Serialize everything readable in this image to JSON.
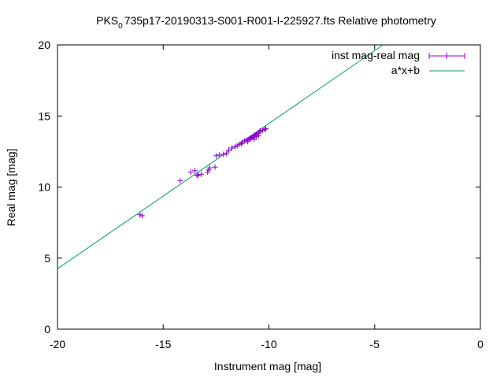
{
  "chart_data": {
    "type": "scatter",
    "title_prefix": "PKS",
    "title_subscript": "0",
    "title_suffix": "735p17-20190313-S001-R001-I-225927.fts Relative photometry",
    "xlabel": "Instrument mag [mag]",
    "ylabel": "Real mag [mag]",
    "xlim": [
      -20,
      0
    ],
    "ylim": [
      0,
      20
    ],
    "xticks": [
      -20,
      -15,
      -10,
      -5,
      0
    ],
    "yticks": [
      0,
      5,
      10,
      15,
      20
    ],
    "xtick_labels": [
      "-20",
      "-15",
      "-10",
      "-5",
      "0"
    ],
    "ytick_labels": [
      "0",
      "5",
      "10",
      "15",
      "20"
    ],
    "grid": false,
    "legend_position": "top-right",
    "colors": {
      "points": "#9400d3",
      "fit": "#009e73"
    },
    "series": [
      {
        "name": "inst mag-real mag",
        "style": "points-errorbars",
        "points": [
          [
            -16.1,
            8.05
          ],
          [
            -16.0,
            7.98
          ],
          [
            -14.2,
            10.45
          ],
          [
            -13.7,
            11.05
          ],
          [
            -13.5,
            11.15
          ],
          [
            -13.4,
            10.8
          ],
          [
            -13.35,
            10.85
          ],
          [
            -13.2,
            10.9
          ],
          [
            -12.9,
            11.05
          ],
          [
            -12.85,
            11.2
          ],
          [
            -12.8,
            11.35
          ],
          [
            -12.55,
            11.4
          ],
          [
            -12.5,
            12.2
          ],
          [
            -12.35,
            12.25
          ],
          [
            -12.15,
            12.3
          ],
          [
            -12.0,
            12.35
          ],
          [
            -11.9,
            12.6
          ],
          [
            -11.75,
            12.75
          ],
          [
            -11.6,
            12.85
          ],
          [
            -11.5,
            12.9
          ],
          [
            -11.4,
            13.0
          ],
          [
            -11.3,
            13.05
          ],
          [
            -11.25,
            13.15
          ],
          [
            -11.15,
            13.25
          ],
          [
            -11.05,
            13.3
          ],
          [
            -10.95,
            13.35
          ],
          [
            -10.9,
            13.45
          ],
          [
            -10.8,
            13.5
          ],
          [
            -10.75,
            13.55
          ],
          [
            -10.7,
            13.65
          ],
          [
            -10.65,
            13.6
          ],
          [
            -10.6,
            13.7
          ],
          [
            -10.55,
            13.75
          ],
          [
            -10.5,
            13.8
          ],
          [
            -10.45,
            13.9
          ],
          [
            -10.4,
            13.95
          ],
          [
            -10.3,
            14.0
          ],
          [
            -10.2,
            14.05
          ],
          [
            -10.15,
            14.1
          ],
          [
            -11.0,
            13.2
          ],
          [
            -10.85,
            13.4
          ],
          [
            -10.7,
            13.35
          ],
          [
            -10.6,
            13.55
          ],
          [
            -10.5,
            13.6
          ]
        ]
      },
      {
        "name": "a*x+b",
        "style": "line",
        "x": [
          -20,
          -4.6
        ],
        "y": [
          4.25,
          20.0
        ]
      }
    ]
  }
}
